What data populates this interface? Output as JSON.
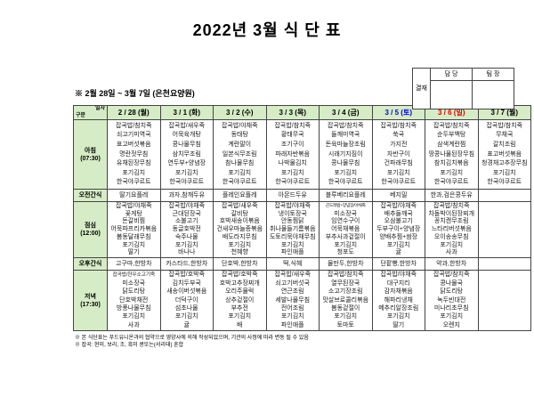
{
  "title": "2022년 3월 식 단 표",
  "approval": {
    "label": "결재",
    "columns": [
      "담 당",
      "팀 장"
    ]
  },
  "subtitle": "※ 2월 28일 ~ 3월 7일 (은천요양원)",
  "colors": {
    "header_green": "#d6ecc6",
    "saturday_blue": "#0000e0",
    "sunday_red": "#e00000",
    "border": "#444444"
  },
  "table": {
    "corner": {
      "top": "일자",
      "bottom": "구분"
    },
    "dates": [
      {
        "label": "2 / 28 (월)",
        "color": "#000000"
      },
      {
        "label": "3 / 1 (화)",
        "color": "#000000"
      },
      {
        "label": "3 / 2 (수)",
        "color": "#000000"
      },
      {
        "label": "3 / 3 (목)",
        "color": "#000000"
      },
      {
        "label": "3 / 4 (금)",
        "color": "#000000"
      },
      {
        "label": "3 / 5 (토)",
        "color": "#0000e0"
      },
      {
        "label": "3 / 6 (일)",
        "color": "#e00000"
      },
      {
        "label": "3 / 7 (월)",
        "color": "#000000"
      }
    ],
    "rows": [
      {
        "label": "아침",
        "time": "(07:30)",
        "cells": [
          [
            "잡곡밥/참치죽",
            "쇠고기미역국",
            "표고버섯볶음",
            "명란젓무침",
            "유채된장무침",
            "포기김치",
            "한국야쿠르트"
          ],
          [
            "잡곡밥/새우죽",
            "어묵육개탕",
            "콩나물무침",
            "삼치무조림",
            "연두부+양념장",
            "포기김치",
            "한국야쿠르트"
          ],
          [
            "잡곡밥/야채죽",
            "동태탕",
            "계란말이",
            "일본식무조림",
            "참나물무침",
            "포기김치",
            "한국야쿠르트"
          ],
          [
            "잡곡밥/참치죽",
            "황태무국",
            "조기구이",
            "파래자반볶음",
            "나박물김치",
            "포기김치",
            "한국야쿠르트"
          ],
          [
            "잡곡밥/참치죽",
            "들깨미역국",
            "돈육마늘장조림",
            "시래기지짐이",
            "콩나물무침",
            "포기김치",
            "한국야쿠르트"
          ],
          [
            "잡곡밥/참치죽",
            "쑥국",
            "가지전",
            "자반구이",
            "건파래무침",
            "포기김치",
            "한국야쿠르트"
          ],
          [
            "잡곡밥/참치죽",
            "순두부백탕",
            "삼색계란찜",
            "땅콩나물된장무침",
            "참치김치볶음",
            "포기김치",
            "한국야쿠르트"
          ],
          [
            "잡곡밥/참치죽",
            "무채국",
            "갈치조림",
            "표고버섯볶음",
            "청경채고추장무침",
            "포기김치",
            "한국야쿠르트"
          ]
        ]
      },
      {
        "label": "오전간식",
        "time": "",
        "cells": [
          [
            "딸기요플레"
          ],
          [
            "과자,참깨두유"
          ],
          [
            "플레인요플레"
          ],
          [
            "아몬드두유"
          ],
          [
            "블루베리요플레"
          ],
          [
            "베지밀"
          ],
          [
            "한과,검은콩두유"
          ],
          []
        ]
      },
      {
        "label": "점심",
        "time": "(12:00)",
        "cells": [
          [
            "잡곡밥/야채죽",
            "꽃게탕",
            "돈갈비찜",
            "어묵파프리카볶음",
            "봄동달래무침",
            "포기김치",
            "딸기"
          ],
          [
            "잡곡밥/야채죽",
            "근대된장국",
            "소불고기",
            "동글호박전",
            "숙주나물",
            "포기김치",
            "바나나"
          ],
          [
            "잡곡밥/새우죽",
            "갈비탕",
            "호박새송이볶음",
            "건새우마늘종볶음",
            "배도라지무침",
            "포기김치",
            "천혜향"
          ],
          [
            "잡곡밥/야채죽",
            "냉이토장국",
            "안동찜닭",
            "취나물들기름볶음",
            "도토리묵야채무침",
            "포기김치",
            "파인애플"
          ],
          [
            "곤드레밥+양념장/야채죽",
            "미소장국",
            "임연수구이",
            "어묵채볶음",
            "부추사과겉절이",
            "포기김치",
            "청포도"
          ],
          [
            "잡곡밥/야채죽",
            "배추들깨국",
            "오삼불고기",
            "두부구이+양념장",
            "양배추찜+쌈장",
            "포기김치",
            "귤"
          ],
          [
            "잡곡밥/참치죽",
            "차돌박이된장찌개",
            "꽁치캔무조림",
            "느타리버섯볶음",
            "오이송송무침",
            "포기김치",
            "사과"
          ],
          []
        ]
      },
      {
        "label": "오후간식",
        "time": "",
        "cells": [
          [
            "고구마,한방차"
          ],
          [
            "카스타드,한방차"
          ],
          [
            "단호박,한방차"
          ],
          [
            "떡,식혜"
          ],
          [
            "물만두,한방차"
          ],
          [
            "단팥빵,한방차"
          ],
          [
            "약과,한방차"
          ],
          []
        ]
      },
      {
        "label": "저녁",
        "time": "(17:30)",
        "cells": [
          [
            "잡곡밥/한우소고기죽",
            "미소장국",
            "닭도리탕",
            "단호박채전",
            "방풍나물무침",
            "포기김치",
            "사과"
          ],
          [
            "잡곡밥/호박죽",
            "김치두부국",
            "새송이버섯볶음",
            "더덕구이",
            "섬초나물",
            "포기김치",
            "귤"
          ],
          [
            "잡곡밥/호박죽",
            "호박고추장찌개",
            "오리주물럭",
            "상추겉절이",
            "부추전",
            "포기김치",
            "배"
          ],
          [
            "잡곡밥/새우죽",
            "쇠고기버섯국",
            "연근조림",
            "세발나물무침",
            "전어조림",
            "포기김치",
            "파인애플"
          ],
          [
            "잡곡밥/참치죽",
            "열무된장국",
            "소고기장조림",
            "맛살브로콜리볶음",
            "봄동겉절이",
            "포기김치",
            "토마토"
          ],
          [
            "잡곡밥/야채죽",
            "대구지리",
            "감자채볶음",
            "해파리냉채",
            "메추리알장조림",
            "포기김치",
            "딸기"
          ],
          [
            "잡곡밥/참치죽",
            "콩나물국",
            "닭도리탕",
            "녹두빈대전",
            "미나리초무침",
            "포기김치",
            "오렌지"
          ],
          []
        ]
      }
    ]
  },
  "footnotes": [
    "※ 본 식단표는 푸드유니온과의 협약으로 영양사에 의해 작성되었으며, 기관의 사정에 따라 변동 될 수 있음",
    "※ 잡곡: 현미, 보리, 조, 흑미 콩또는(서리태) 혼합"
  ]
}
